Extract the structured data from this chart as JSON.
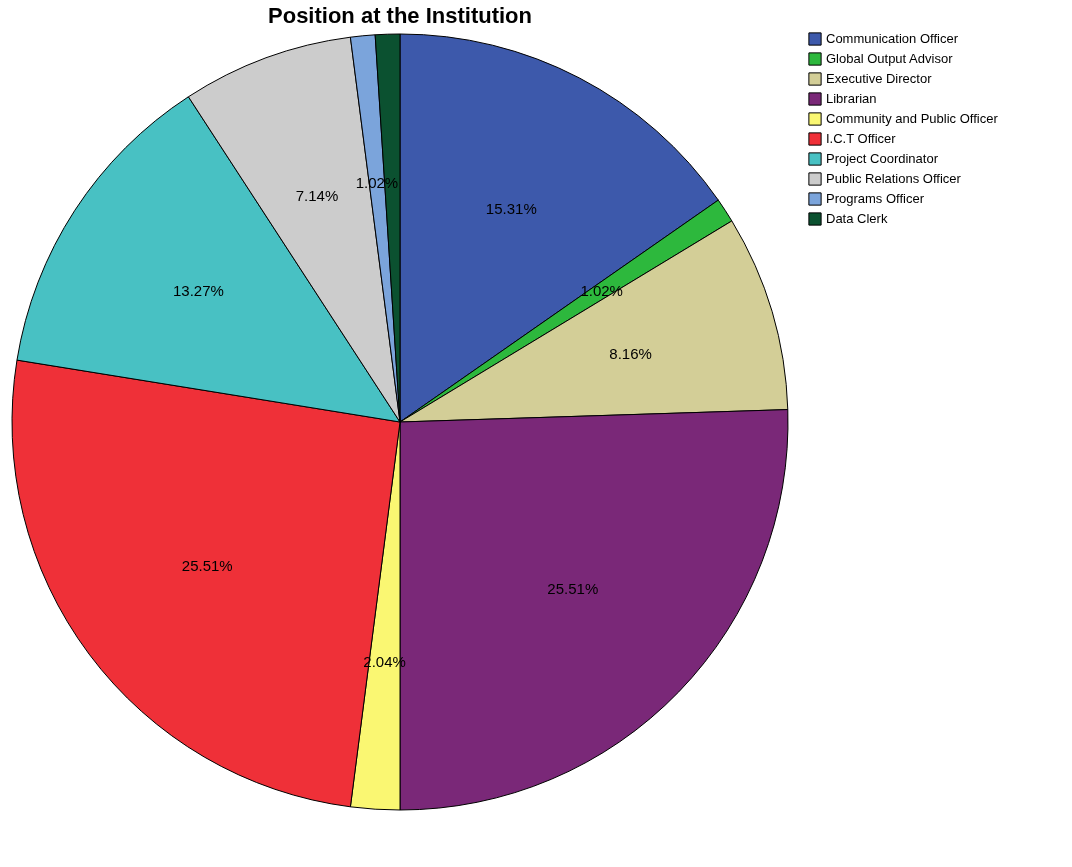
{
  "chart_data": {
    "type": "pie",
    "title": "Position at the Institution",
    "categories": [
      "Communication Officer",
      "Global Output Advisor",
      "Executive Director",
      "Librarian",
      "Community and Public Officer",
      "I.C.T Officer",
      "Project Coordinator",
      "Public Relations Officer",
      "Programs Officer",
      "Data Clerk"
    ],
    "values": [
      15.31,
      1.02,
      8.16,
      25.51,
      2.04,
      25.51,
      13.27,
      7.14,
      1.02,
      1.02
    ],
    "value_labels": [
      "15.31%",
      "1.02%",
      "8.16%",
      "25.51%",
      "2.04%",
      "25.51%",
      "13.27%",
      "7.14%",
      "1.02%",
      null
    ],
    "colors": [
      "#3d59ab",
      "#2db83d",
      "#d3ce97",
      "#7a2878",
      "#faf772",
      "#ef3038",
      "#48c1c3",
      "#cccccc",
      "#7ba4db",
      "#0b5130"
    ],
    "legend": "top right"
  }
}
